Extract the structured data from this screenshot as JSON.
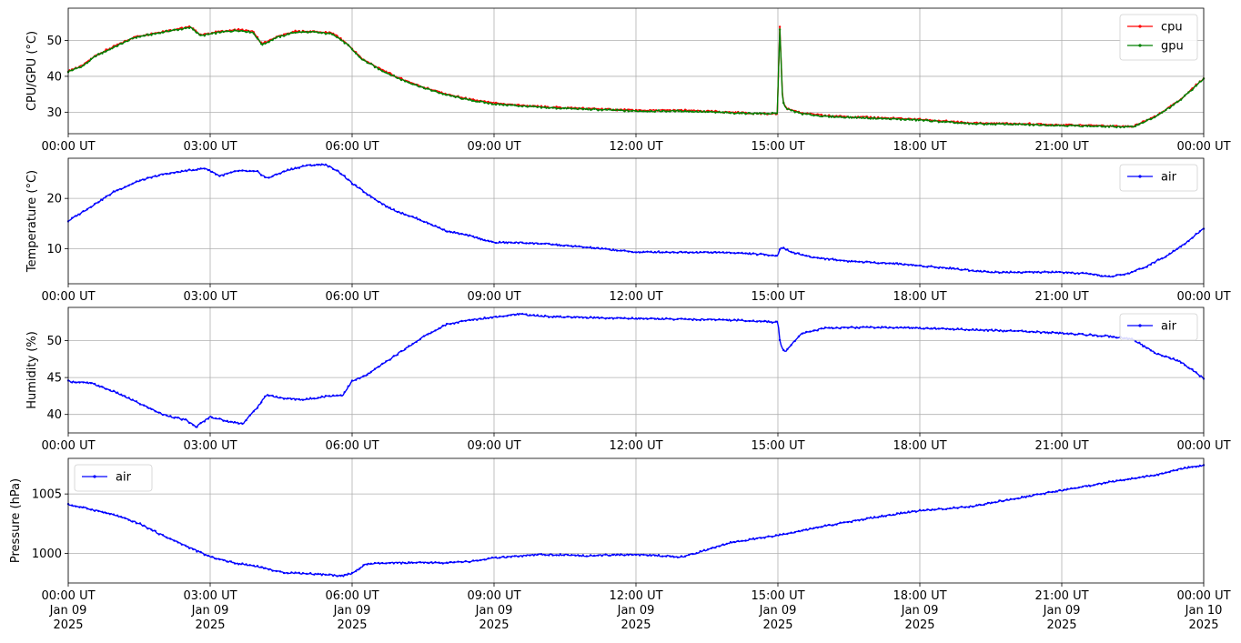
{
  "chart_data": [
    {
      "type": "line",
      "ylabel": "CPU/GPU (°C)",
      "ylim": [
        24,
        59
      ],
      "yticks": [
        30,
        40,
        50
      ],
      "grid": true,
      "legend_position": "top-right",
      "x_tick_labels": [
        "00:00 UT",
        "03:00 UT",
        "06:00 UT",
        "09:00 UT",
        "12:00 UT",
        "15:00 UT",
        "18:00 UT",
        "21:00 UT",
        "00:00 UT"
      ],
      "x_hours": [
        0,
        3,
        6,
        9,
        12,
        15,
        18,
        21,
        24
      ],
      "series": [
        {
          "name": "cpu",
          "color": "#ff0000",
          "x": [
            0,
            0.3,
            0.6,
            1.0,
            1.4,
            1.8,
            2.2,
            2.6,
            2.8,
            3.2,
            3.6,
            3.9,
            4.1,
            4.4,
            4.8,
            5.2,
            5.6,
            5.9,
            6.2,
            6.6,
            7.0,
            7.5,
            8.0,
            8.5,
            9.0,
            9.5,
            10.0,
            11.0,
            12.0,
            13.0,
            14.0,
            14.8,
            15.0,
            15.03,
            15.06,
            15.1,
            15.2,
            15.5,
            16.0,
            17.0,
            18.0,
            19.0,
            20.0,
            21.0,
            22.0,
            22.5,
            23.0,
            23.5,
            24.0
          ],
          "values": [
            41.5,
            43,
            46,
            48.5,
            51,
            52,
            53,
            53.8,
            51.5,
            52.5,
            53,
            52.5,
            49,
            51,
            52.5,
            52.5,
            52,
            49,
            45,
            42,
            39.5,
            37,
            35,
            33.5,
            32.5,
            32,
            31.5,
            31,
            30.5,
            30.5,
            30,
            29.5,
            29.5,
            57,
            47,
            33,
            31,
            29.8,
            29,
            28.5,
            28,
            27,
            26.8,
            26.5,
            26.2,
            26,
            29,
            33.5,
            39.5
          ]
        },
        {
          "name": "gpu",
          "color": "#008000",
          "x": [
            0,
            0.3,
            0.6,
            1.0,
            1.4,
            1.8,
            2.2,
            2.6,
            2.8,
            3.2,
            3.6,
            3.9,
            4.1,
            4.4,
            4.8,
            5.2,
            5.6,
            5.9,
            6.2,
            6.6,
            7.0,
            7.5,
            8.0,
            8.5,
            9.0,
            9.5,
            10.0,
            11.0,
            12.0,
            13.0,
            14.0,
            14.8,
            15.0,
            15.03,
            15.06,
            15.1,
            15.2,
            15.5,
            16.0,
            17.0,
            18.0,
            19.0,
            20.0,
            21.0,
            22.0,
            22.5,
            23.0,
            23.5,
            24.0
          ],
          "values": [
            41.3,
            42.8,
            45.8,
            48.3,
            50.8,
            51.8,
            52.8,
            53.6,
            51.3,
            52.3,
            52.8,
            52.3,
            48.8,
            50.8,
            52.3,
            52.3,
            51.8,
            48.8,
            44.8,
            41.8,
            39.3,
            36.8,
            34.8,
            33.3,
            32.3,
            31.8,
            31.3,
            30.8,
            30.3,
            30.3,
            29.8,
            29.6,
            29.6,
            56.5,
            46.5,
            32.8,
            30.8,
            29.6,
            28.8,
            28.3,
            27.8,
            26.8,
            26.6,
            26.3,
            26,
            25.9,
            28.8,
            33.3,
            39.3
          ]
        }
      ]
    },
    {
      "type": "line",
      "ylabel": "Temperature (°C)",
      "ylim": [
        3,
        28
      ],
      "yticks": [
        10,
        20
      ],
      "grid": true,
      "legend_position": "top-right",
      "x_tick_labels": [
        "00:00 UT",
        "03:00 UT",
        "06:00 UT",
        "09:00 UT",
        "12:00 UT",
        "15:00 UT",
        "18:00 UT",
        "21:00 UT",
        "00:00 UT"
      ],
      "x_hours": [
        0,
        3,
        6,
        9,
        12,
        15,
        18,
        21,
        24
      ],
      "series": [
        {
          "name": "air",
          "color": "#0000ff",
          "x": [
            0,
            0.5,
            1.0,
            1.5,
            2.0,
            2.5,
            2.9,
            3.2,
            3.6,
            4.0,
            4.2,
            4.6,
            5.0,
            5.4,
            5.7,
            6.0,
            6.3,
            6.8,
            7.5,
            8.0,
            8.5,
            9.0,
            9.5,
            10.0,
            11.0,
            12.0,
            13.0,
            14.0,
            14.9,
            15.0,
            15.05,
            15.3,
            15.7,
            16.5,
            17.5,
            18.5,
            19.5,
            20.5,
            21.0,
            21.5,
            22.0,
            22.4,
            22.8,
            23.2,
            23.6,
            24.0
          ],
          "values": [
            15.5,
            18.5,
            21.5,
            23.5,
            24.8,
            25.5,
            26,
            24.5,
            25.5,
            25.3,
            24,
            25.5,
            26.5,
            26.8,
            25.5,
            23,
            21,
            18,
            15.5,
            13.5,
            12.5,
            11.2,
            11.2,
            11,
            10.2,
            9.3,
            9.3,
            9.2,
            8.7,
            8.5,
            10.3,
            9.3,
            8.3,
            7.5,
            7,
            6.2,
            5.3,
            5.3,
            5.3,
            5,
            4.4,
            5,
            6.5,
            8.5,
            11,
            14
          ]
        }
      ]
    },
    {
      "type": "line",
      "ylabel": "Humidity (%)",
      "ylim": [
        37.5,
        54.5
      ],
      "yticks": [
        40,
        45,
        50
      ],
      "grid": true,
      "legend_position": "top-right",
      "x_tick_labels": [
        "00:00 UT",
        "03:00 UT",
        "06:00 UT",
        "09:00 UT",
        "12:00 UT",
        "15:00 UT",
        "18:00 UT",
        "21:00 UT",
        "00:00 UT"
      ],
      "x_hours": [
        0,
        3,
        6,
        9,
        12,
        15,
        18,
        21,
        24
      ],
      "series": [
        {
          "name": "air",
          "color": "#0000ff",
          "x": [
            0,
            0.5,
            1.0,
            1.5,
            2.0,
            2.5,
            2.7,
            3.0,
            3.4,
            3.7,
            4.0,
            4.2,
            4.5,
            5.0,
            5.5,
            5.8,
            6.0,
            6.3,
            6.8,
            7.5,
            8.0,
            8.5,
            9.0,
            9.5,
            10.0,
            11.0,
            12.0,
            13.0,
            14.0,
            15.0,
            15.05,
            15.15,
            15.5,
            16.0,
            17.0,
            18.0,
            19.0,
            20.0,
            21.0,
            22.0,
            22.5,
            23.0,
            23.5,
            24.0
          ],
          "values": [
            44.5,
            44.2,
            43,
            41.5,
            40,
            39.2,
            38.3,
            39.7,
            39,
            38.8,
            41,
            42.7,
            42.2,
            42,
            42.5,
            42.6,
            44.5,
            45.3,
            47.5,
            50.5,
            52.2,
            52.8,
            53.2,
            53.6,
            53.3,
            53.1,
            53,
            52.9,
            52.8,
            52.5,
            49.5,
            48.5,
            51,
            51.7,
            51.8,
            51.7,
            51.5,
            51.3,
            51,
            50.6,
            50.2,
            48.2,
            47.2,
            44.9
          ]
        }
      ]
    },
    {
      "type": "line",
      "ylabel": "Pressure (hPa)",
      "ylim": [
        997.5,
        1008
      ],
      "yticks": [
        1000,
        1005
      ],
      "grid": true,
      "legend_position": "top-left",
      "x_tick_labels": [
        "00:00 UT\nJan 09\n2025",
        "03:00 UT\nJan 09\n2025",
        "06:00 UT\nJan 09\n2025",
        "09:00 UT\nJan 09\n2025",
        "12:00 UT\nJan 09\n2025",
        "15:00 UT\nJan 09\n2025",
        "18:00 UT\nJan 09\n2025",
        "21:00 UT\nJan 09\n2025",
        "00:00 UT\nJan 10\n2025"
      ],
      "x_hours": [
        0,
        3,
        6,
        9,
        12,
        15,
        18,
        21,
        24
      ],
      "series": [
        {
          "name": "air",
          "color": "#0000ff",
          "x": [
            0,
            0.5,
            1.0,
            1.5,
            2.0,
            2.5,
            3.0,
            3.5,
            4.0,
            4.5,
            5.0,
            5.5,
            5.8,
            6.0,
            6.3,
            7.0,
            8.0,
            8.5,
            9.0,
            10.0,
            11.0,
            12.0,
            13.0,
            13.5,
            14.0,
            15.0,
            16.0,
            17.0,
            18.0,
            19.0,
            20.0,
            21.0,
            22.0,
            23.0,
            23.5,
            24.0
          ],
          "values": [
            1004.1,
            1003.7,
            1003.2,
            1002.5,
            1001.5,
            1000.6,
            999.7,
            999.2,
            998.9,
            998.4,
            998.3,
            998.2,
            998.1,
            998.3,
            999.1,
            999.2,
            999.2,
            999.3,
            999.6,
            999.9,
            999.8,
            999.9,
            999.7,
            1000.3,
            1000.9,
            1001.5,
            1002.3,
            1003.0,
            1003.6,
            1003.9,
            1004.6,
            1005.3,
            1006.0,
            1006.6,
            1007.1,
            1007.4
          ]
        }
      ]
    }
  ]
}
